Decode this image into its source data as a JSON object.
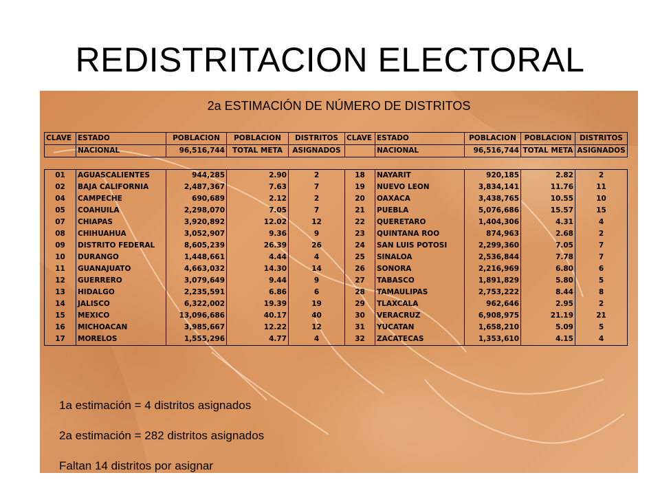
{
  "title": "REDISTRITACION ELECTORAL",
  "subtitle": "2a ESTIMACIÓN DE NÚMERO DE DISTRITOS",
  "headers": {
    "clave": "CLAVE",
    "estado": "ESTADO",
    "poblacion": "POBLACION",
    "poblacion_meta": "POBLACION",
    "total_meta": "TOTAL META",
    "distritos": "DISTRITOS",
    "asignados": "ASIGNADOS"
  },
  "nacional": {
    "label": "NACIONAL",
    "poblacion": "96,516,744"
  },
  "left_rows": [
    {
      "clave": "01",
      "estado": "AGUASCALIENTES",
      "poblacion": "944,285",
      "meta": "2.90",
      "asignados": "2"
    },
    {
      "clave": "02",
      "estado": "BAJA CALIFORNIA",
      "poblacion": "2,487,367",
      "meta": "7.63",
      "asignados": "7"
    },
    {
      "clave": "04",
      "estado": "CAMPECHE",
      "poblacion": "690,689",
      "meta": "2.12",
      "asignados": "2"
    },
    {
      "clave": "05",
      "estado": "COAHUILA",
      "poblacion": "2,298,070",
      "meta": "7.05",
      "asignados": "7"
    },
    {
      "clave": "07",
      "estado": "CHIAPAS",
      "poblacion": "3,920,892",
      "meta": "12.02",
      "asignados": "12"
    },
    {
      "clave": "08",
      "estado": "CHIHUAHUA",
      "poblacion": "3,052,907",
      "meta": "9.36",
      "asignados": "9"
    },
    {
      "clave": "09",
      "estado": "DISTRITO FEDERAL",
      "poblacion": "8,605,239",
      "meta": "26.39",
      "asignados": "26"
    },
    {
      "clave": "10",
      "estado": "DURANGO",
      "poblacion": "1,448,661",
      "meta": "4.44",
      "asignados": "4"
    },
    {
      "clave": "11",
      "estado": "GUANAJUATO",
      "poblacion": "4,663,032",
      "meta": "14.30",
      "asignados": "14"
    },
    {
      "clave": "12",
      "estado": "GUERRERO",
      "poblacion": "3,079,649",
      "meta": "9.44",
      "asignados": "9"
    },
    {
      "clave": "13",
      "estado": "HIDALGO",
      "poblacion": "2,235,591",
      "meta": "6.86",
      "asignados": "6"
    },
    {
      "clave": "14",
      "estado": "JALISCO",
      "poblacion": "6,322,002",
      "meta": "19.39",
      "asignados": "19"
    },
    {
      "clave": "15",
      "estado": "MEXICO",
      "poblacion": "13,096,686",
      "meta": "40.17",
      "asignados": "40"
    },
    {
      "clave": "16",
      "estado": "MICHOACAN",
      "poblacion": "3,985,667",
      "meta": "12.22",
      "asignados": "12"
    },
    {
      "clave": "17",
      "estado": "MORELOS",
      "poblacion": "1,555,296",
      "meta": "4.77",
      "asignados": "4"
    }
  ],
  "right_rows": [
    {
      "clave": "18",
      "estado": "NAYARIT",
      "poblacion": "920,185",
      "meta": "2.82",
      "asignados": "2"
    },
    {
      "clave": "19",
      "estado": "NUEVO LEON",
      "poblacion": "3,834,141",
      "meta": "11.76",
      "asignados": "11"
    },
    {
      "clave": "20",
      "estado": "OAXACA",
      "poblacion": "3,438,765",
      "meta": "10.55",
      "asignados": "10"
    },
    {
      "clave": "21",
      "estado": "PUEBLA",
      "poblacion": "5,076,686",
      "meta": "15.57",
      "asignados": "15"
    },
    {
      "clave": "22",
      "estado": "QUERETARO",
      "poblacion": "1,404,306",
      "meta": "4.31",
      "asignados": "4"
    },
    {
      "clave": "23",
      "estado": "QUINTANA ROO",
      "poblacion": "874,963",
      "meta": "2.68",
      "asignados": "2"
    },
    {
      "clave": "24",
      "estado": "SAN LUIS POTOSI",
      "poblacion": "2,299,360",
      "meta": "7.05",
      "asignados": "7"
    },
    {
      "clave": "25",
      "estado": "SINALOA",
      "poblacion": "2,536,844",
      "meta": "7.78",
      "asignados": "7"
    },
    {
      "clave": "26",
      "estado": "SONORA",
      "poblacion": "2,216,969",
      "meta": "6.80",
      "asignados": "6"
    },
    {
      "clave": "27",
      "estado": "TABASCO",
      "poblacion": "1,891,829",
      "meta": "5.80",
      "asignados": "5"
    },
    {
      "clave": "28",
      "estado": "TAMAULIPAS",
      "poblacion": "2,753,222",
      "meta": "8.44",
      "asignados": "8"
    },
    {
      "clave": "29",
      "estado": "TLAXCALA",
      "poblacion": "962,646",
      "meta": "2.95",
      "asignados": "2"
    },
    {
      "clave": "30",
      "estado": "VERACRUZ",
      "poblacion": "6,908,975",
      "meta": "21.19",
      "asignados": "21"
    },
    {
      "clave": "31",
      "estado": "YUCATAN",
      "poblacion": "1,658,210",
      "meta": "5.09",
      "asignados": "5"
    },
    {
      "clave": "32",
      "estado": "ZACATECAS",
      "poblacion": "1,353,610",
      "meta": "4.15",
      "asignados": "4"
    }
  ],
  "notes": [
    "1a estimación = 4 distritos asignados",
    "2a estimación = 282 distritos asignados",
    "Faltan 14 distritos por asignar"
  ],
  "colors": {
    "panel_base": "#d9935c",
    "panel_light": "#e6ac7c",
    "panel_dark": "#c27a45"
  }
}
